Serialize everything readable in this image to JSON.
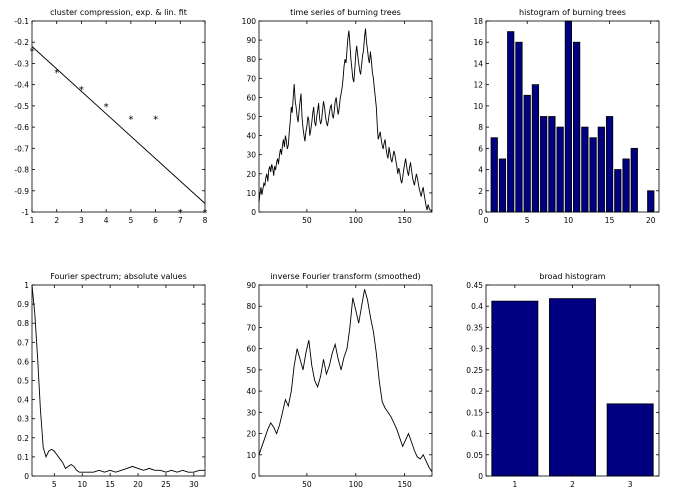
{
  "colors": {
    "axes": "#000000",
    "bar_fill": "#000080",
    "line": "#000000",
    "background": "#ffffff"
  },
  "chart_data": [
    {
      "id": "cluster-compression",
      "type": "scatter",
      "title": "cluster compression, exp. & lin. fit",
      "xlim": [
        1,
        8
      ],
      "ylim": [
        -1,
        -0.1
      ],
      "xticks": [
        1,
        2,
        3,
        4,
        5,
        6,
        7,
        8
      ],
      "yticks": [
        -1,
        -0.9,
        -0.8,
        -0.7,
        -0.6,
        -0.5,
        -0.4,
        -0.3,
        -0.2,
        -0.1
      ],
      "series": [
        {
          "marker": "*",
          "x": [
            1,
            2,
            3,
            4,
            5,
            6,
            7,
            8
          ],
          "y": [
            -0.24,
            -0.34,
            -0.42,
            -0.5,
            -0.56,
            -0.56,
            -1.0,
            -1.0
          ]
        },
        {
          "style": "line",
          "x": [
            1,
            8
          ],
          "y": [
            -0.22,
            -0.96
          ]
        }
      ]
    },
    {
      "id": "time-series",
      "type": "line",
      "title": "time series of burning trees",
      "xlim": [
        1,
        178
      ],
      "ylim": [
        0,
        100
      ],
      "xticks": [
        50,
        100,
        150
      ],
      "yticks": [
        0,
        10,
        20,
        30,
        40,
        50,
        60,
        70,
        80,
        90,
        100
      ],
      "series": [
        {
          "x": [
            1,
            2,
            3,
            4,
            5,
            6,
            7,
            8,
            9,
            10,
            11,
            12,
            13,
            14,
            15,
            16,
            17,
            18,
            19,
            20,
            21,
            22,
            23,
            24,
            25,
            26,
            27,
            28,
            29,
            30,
            31,
            32,
            33,
            34,
            35,
            36,
            37,
            38,
            39,
            40,
            41,
            42,
            43,
            44,
            45,
            46,
            47,
            48,
            49,
            50,
            51,
            52,
            53,
            54,
            55,
            56,
            57,
            58,
            59,
            60,
            61,
            62,
            63,
            64,
            65,
            66,
            67,
            68,
            69,
            70,
            71,
            72,
            73,
            74,
            75,
            76,
            77,
            78,
            79,
            80,
            81,
            82,
            83,
            84,
            85,
            86,
            87,
            88,
            89,
            90,
            91,
            92,
            93,
            94,
            95,
            96,
            97,
            98,
            99,
            100,
            101,
            102,
            103,
            104,
            105,
            106,
            107,
            108,
            109,
            110,
            111,
            112,
            113,
            114,
            115,
            116,
            117,
            118,
            119,
            120,
            121,
            122,
            123,
            124,
            125,
            126,
            127,
            128,
            129,
            130,
            131,
            132,
            133,
            134,
            135,
            136,
            137,
            138,
            139,
            140,
            141,
            142,
            143,
            144,
            145,
            146,
            147,
            148,
            149,
            150,
            151,
            152,
            153,
            154,
            155,
            156,
            157,
            158,
            159,
            160,
            161,
            162,
            163,
            164,
            165,
            166,
            167,
            168,
            169,
            170,
            171,
            172,
            173,
            174,
            175,
            176,
            177,
            178
          ],
          "y": [
            5,
            10,
            13,
            9,
            12,
            15,
            14,
            18,
            20,
            16,
            22,
            24,
            21,
            25,
            23,
            19,
            24,
            22,
            26,
            28,
            25,
            30,
            33,
            30,
            35,
            38,
            34,
            40,
            37,
            33,
            35,
            42,
            48,
            55,
            52,
            60,
            67,
            58,
            55,
            50,
            47,
            53,
            58,
            62,
            50,
            44,
            40,
            37,
            42,
            45,
            50,
            48,
            40,
            43,
            47,
            52,
            55,
            47,
            45,
            50,
            53,
            57,
            49,
            46,
            48,
            53,
            58,
            55,
            50,
            47,
            45,
            48,
            52,
            55,
            56,
            51,
            49,
            53,
            58,
            60,
            55,
            51,
            54,
            59,
            62,
            65,
            70,
            76,
            80,
            78,
            85,
            91,
            95,
            88,
            80,
            75,
            70,
            68,
            75,
            83,
            87,
            82,
            78,
            74,
            72,
            77,
            82,
            85,
            92,
            96,
            89,
            85,
            80,
            78,
            84,
            79,
            73,
            70,
            65,
            60,
            55,
            45,
            38,
            40,
            42,
            38,
            35,
            33,
            36,
            38,
            33,
            30,
            28,
            34,
            31,
            28,
            26,
            29,
            32,
            30,
            27,
            24,
            20,
            23,
            21,
            17,
            15,
            18,
            22,
            25,
            28,
            24,
            21,
            19,
            23,
            26,
            22,
            18,
            16,
            14,
            17,
            20,
            18,
            15,
            12,
            10,
            8,
            11,
            13,
            9,
            6,
            3,
            1,
            4,
            2,
            1,
            1,
            0
          ]
        }
      ]
    },
    {
      "id": "histogram-fine",
      "type": "bar",
      "title": "histogram of burning trees",
      "xlim": [
        0,
        21
      ],
      "ylim": [
        0,
        18
      ],
      "xticks": [
        0,
        5,
        10,
        15,
        20
      ],
      "yticks": [
        0,
        2,
        4,
        6,
        8,
        10,
        12,
        14,
        16,
        18
      ],
      "categories": [
        1,
        2,
        3,
        4,
        5,
        6,
        7,
        8,
        9,
        10,
        11,
        12,
        13,
        14,
        15,
        16,
        17,
        18,
        20
      ],
      "values": [
        7,
        5,
        17,
        16,
        11,
        12,
        9,
        9,
        8,
        18,
        16,
        8,
        7,
        8,
        9,
        4,
        5,
        6,
        2
      ]
    },
    {
      "id": "fourier-spectrum",
      "type": "line",
      "title": "Fourier spectrum; absolute values",
      "xlim": [
        1,
        32
      ],
      "ylim": [
        0,
        1
      ],
      "xticks": [
        5,
        10,
        15,
        20,
        25,
        30
      ],
      "yticks": [
        0,
        0.1,
        0.2,
        0.3,
        0.4,
        0.5,
        0.6,
        0.7,
        0.8,
        0.9,
        1
      ],
      "series": [
        {
          "x": [
            1,
            1.5,
            2,
            2.5,
            3,
            3.5,
            4,
            4.5,
            5,
            5.5,
            6,
            6.5,
            7,
            7.5,
            8,
            8.5,
            9,
            9.5,
            10,
            11,
            12,
            13,
            14,
            15,
            16,
            17,
            18,
            19,
            20,
            21,
            22,
            23,
            24,
            25,
            26,
            27,
            28,
            29,
            30,
            31,
            32
          ],
          "y": [
            1.0,
            0.85,
            0.62,
            0.35,
            0.15,
            0.1,
            0.13,
            0.14,
            0.13,
            0.11,
            0.09,
            0.07,
            0.04,
            0.05,
            0.06,
            0.05,
            0.03,
            0.02,
            0.02,
            0.02,
            0.02,
            0.03,
            0.02,
            0.03,
            0.02,
            0.03,
            0.04,
            0.05,
            0.04,
            0.03,
            0.04,
            0.03,
            0.03,
            0.02,
            0.03,
            0.02,
            0.03,
            0.02,
            0.02,
            0.03,
            0.03
          ]
        }
      ]
    },
    {
      "id": "inverse-fourier",
      "type": "line",
      "title": "inverse Fourier transform (smoothed)",
      "xlim": [
        1,
        178
      ],
      "ylim": [
        0,
        90
      ],
      "xticks": [
        50,
        100,
        150
      ],
      "yticks": [
        0,
        10,
        20,
        30,
        40,
        50,
        60,
        70,
        80,
        90
      ],
      "series": [
        {
          "x": [
            1,
            4,
            7,
            10,
            13,
            16,
            19,
            22,
            25,
            28,
            31,
            34,
            37,
            40,
            43,
            46,
            49,
            52,
            55,
            58,
            61,
            64,
            67,
            70,
            73,
            76,
            79,
            82,
            85,
            88,
            91,
            94,
            97,
            100,
            103,
            106,
            109,
            112,
            115,
            118,
            121,
            124,
            127,
            130,
            133,
            136,
            139,
            142,
            145,
            148,
            151,
            154,
            157,
            160,
            163,
            166,
            169,
            172,
            175,
            178
          ],
          "y": [
            10,
            14,
            18,
            22,
            25,
            23,
            20,
            24,
            30,
            36,
            33,
            40,
            52,
            60,
            55,
            50,
            58,
            64,
            52,
            45,
            42,
            47,
            55,
            48,
            52,
            58,
            62,
            55,
            50,
            56,
            60,
            70,
            84,
            78,
            72,
            80,
            88,
            83,
            75,
            68,
            58,
            45,
            35,
            32,
            30,
            28,
            25,
            22,
            18,
            14,
            17,
            20,
            16,
            12,
            9,
            8,
            10,
            7,
            4,
            2
          ]
        }
      ]
    },
    {
      "id": "broad-histogram",
      "type": "bar",
      "title": "broad histogram",
      "xlim": [
        0.5,
        3.5
      ],
      "ylim": [
        0,
        0.45
      ],
      "xticks": [
        1,
        2,
        3
      ],
      "yticks": [
        0,
        0.05,
        0.1,
        0.15,
        0.2,
        0.25,
        0.3,
        0.35,
        0.4,
        0.45
      ],
      "categories": [
        1,
        2,
        3
      ],
      "values": [
        0.412,
        0.418,
        0.17
      ]
    }
  ]
}
